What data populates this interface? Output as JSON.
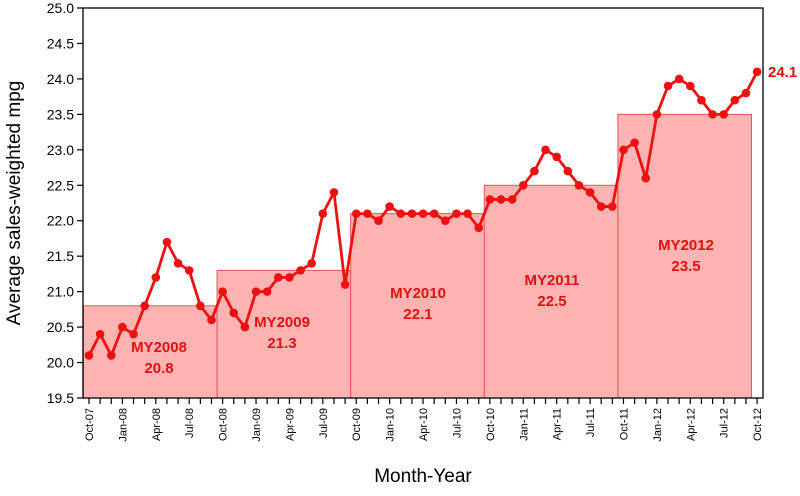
{
  "chart_data": {
    "type": "line",
    "title": "",
    "xlabel": "Month-Year",
    "ylabel": "Average sales-weighted mpg",
    "ylim": [
      19.5,
      25.0
    ],
    "yticks": [
      "19.5",
      "20.0",
      "20.5",
      "21.0",
      "21.5",
      "22.0",
      "22.5",
      "23.0",
      "23.5",
      "24.0",
      "24.5",
      "25.0"
    ],
    "x": [
      "Oct-07",
      "Nov-07",
      "Dec-07",
      "Jan-08",
      "Feb-08",
      "Mar-08",
      "Apr-08",
      "May-08",
      "Jun-08",
      "Jul-08",
      "Aug-08",
      "Sep-08",
      "Oct-08",
      "Nov-08",
      "Dec-08",
      "Jan-09",
      "Feb-09",
      "Mar-09",
      "Apr-09",
      "May-09",
      "Jun-09",
      "Jul-09",
      "Aug-09",
      "Sep-09",
      "Oct-09",
      "Nov-09",
      "Dec-09",
      "Jan-10",
      "Feb-10",
      "Mar-10",
      "Apr-10",
      "May-10",
      "Jun-10",
      "Jul-10",
      "Aug-10",
      "Sep-10",
      "Oct-10",
      "Nov-10",
      "Dec-10",
      "Jan-11",
      "Feb-11",
      "Mar-11",
      "Apr-11",
      "May-11",
      "Jun-11",
      "Jul-11",
      "Aug-11",
      "Sep-11",
      "Oct-11",
      "Nov-11",
      "Dec-11",
      "Jan-12",
      "Feb-12",
      "Mar-12",
      "Apr-12",
      "May-12",
      "Jun-12",
      "Jul-12",
      "Aug-12",
      "Sep-12",
      "Oct-12"
    ],
    "xtick_labels": [
      "Oct-07",
      "Jan-08",
      "Apr-08",
      "Jul-08",
      "Oct-08",
      "Jan-09",
      "Apr-09",
      "Jul-09",
      "Oct-09",
      "Jan-10",
      "Apr-10",
      "Jul-10",
      "Oct-10",
      "Jan-11",
      "Apr-11",
      "Jul-11",
      "Oct-11",
      "Jan-12",
      "Apr-12",
      "Jul-12",
      "Oct-12"
    ],
    "values": [
      20.1,
      20.4,
      20.1,
      20.5,
      20.4,
      20.8,
      21.2,
      21.7,
      21.4,
      21.3,
      20.8,
      20.6,
      21.0,
      20.7,
      20.5,
      21.0,
      21.0,
      21.2,
      21.2,
      21.3,
      21.4,
      22.1,
      22.4,
      21.1,
      22.1,
      22.1,
      22.0,
      22.2,
      22.1,
      22.1,
      22.1,
      22.1,
      22.0,
      22.1,
      22.1,
      21.9,
      22.3,
      22.3,
      22.3,
      22.5,
      22.7,
      23.0,
      22.9,
      22.7,
      22.5,
      22.4,
      22.2,
      22.2,
      23.0,
      23.1,
      22.6,
      23.5,
      23.9,
      24.0,
      23.9,
      23.7,
      23.5,
      23.5,
      23.7,
      23.8,
      24.1
    ],
    "last_value_label": "24.1",
    "model_years": [
      {
        "label": "MY2008",
        "value_label": "20.8",
        "value": 20.8,
        "start": "Oct-07",
        "end": "Sep-08"
      },
      {
        "label": "MY2009",
        "value_label": "21.3",
        "value": 21.3,
        "start": "Oct-08",
        "end": "Sep-09"
      },
      {
        "label": "MY2010",
        "value_label": "22.1",
        "value": 22.1,
        "start": "Oct-09",
        "end": "Sep-10"
      },
      {
        "label": "MY2011",
        "value_label": "22.5",
        "value": 22.5,
        "start": "Oct-10",
        "end": "Sep-11"
      },
      {
        "label": "MY2012",
        "value_label": "23.5",
        "value": 23.5,
        "start": "Oct-11",
        "end": "Sep-12"
      }
    ],
    "grid": false,
    "colors": {
      "line": "#ee1111",
      "bar_fill": "#ffb3b3",
      "bar_stroke": "#e05555",
      "label": "#e01010"
    }
  }
}
